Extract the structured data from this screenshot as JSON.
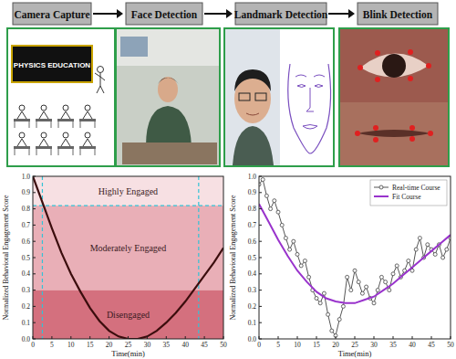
{
  "pipeline": {
    "steps": [
      "Camera Capture",
      "Face Detection",
      "Landmark Detection",
      "Blink Detection"
    ],
    "board_text": "PHYSICS EDUCATION"
  },
  "chart_data": [
    {
      "type": "line",
      "x_label": "Time(min)",
      "y_label": "Normalized Behavioral Engagement Score",
      "x": [
        0,
        2.5,
        5,
        7.5,
        10,
        12.5,
        15,
        17.5,
        20,
        22.5,
        25,
        27.5,
        30,
        32.5,
        35,
        37.5,
        40,
        42.5,
        45,
        47.5,
        50
      ],
      "values": [
        1.0,
        0.84,
        0.68,
        0.53,
        0.4,
        0.29,
        0.19,
        0.11,
        0.05,
        0.015,
        0.0,
        0.0,
        0.015,
        0.05,
        0.1,
        0.16,
        0.23,
        0.31,
        0.39,
        0.47,
        0.56
      ],
      "color": "#3b0d0d",
      "xlim": [
        0,
        50
      ],
      "ylim": [
        0,
        1
      ],
      "xticks": [
        0,
        5,
        10,
        15,
        20,
        25,
        30,
        35,
        40,
        45,
        50
      ],
      "yticks": [
        {
          "value": 0,
          "label": "0.0"
        },
        {
          "value": 0.1,
          "label": "0.1"
        },
        {
          "value": 0.2,
          "label": "0.2"
        },
        {
          "value": 0.3,
          "label": "0.3"
        },
        {
          "value": 0.4,
          "label": "0.4"
        },
        {
          "value": 0.5,
          "label": "0.5"
        },
        {
          "value": 0.6,
          "label": "0.6"
        },
        {
          "value": 0.7,
          "label": "0.7"
        },
        {
          "value": 0.8,
          "label": "0.8"
        },
        {
          "value": 0.9,
          "label": "0.9"
        },
        {
          "value": 1,
          "label": "1.0"
        }
      ],
      "grid": false,
      "bands": [
        {
          "label": "Highly Engaged",
          "from": 0.82,
          "to": 1.0,
          "color": "#f7e0e3"
        },
        {
          "label": "Moderately Engaged",
          "from": 0.3,
          "to": 0.82,
          "color": "#e9afb7"
        },
        {
          "label": "Disengaged",
          "from": 0.0,
          "to": 0.3,
          "color": "#d4707e"
        }
      ],
      "reference_lines": {
        "x": [
          2.5,
          43.5
        ],
        "y": [
          0.82
        ],
        "color": "#33c3d6",
        "line_style": "dashed"
      }
    },
    {
      "type": "line",
      "x_label": "Time(min)",
      "y_label": "Normalized Behavioral Engagement Score",
      "xlim": [
        0,
        50
      ],
      "ylim": [
        0,
        1
      ],
      "xticks": [
        0,
        5,
        10,
        15,
        20,
        25,
        30,
        35,
        40,
        45,
        50
      ],
      "yticks": [
        {
          "value": 0,
          "label": "0.0"
        },
        {
          "value": 0.1,
          "label": "0.1"
        },
        {
          "value": 0.2,
          "label": "0.2"
        },
        {
          "value": 0.3,
          "label": "0.3"
        },
        {
          "value": 0.4,
          "label": "0.4"
        },
        {
          "value": 0.5,
          "label": "0.5"
        },
        {
          "value": 0.6,
          "label": "0.6"
        },
        {
          "value": 0.7,
          "label": "0.7"
        },
        {
          "value": 0.8,
          "label": "0.8"
        },
        {
          "value": 0.9,
          "label": "0.9"
        },
        {
          "value": 1,
          "label": "1.0"
        }
      ],
      "grid": false,
      "legend": "upper right",
      "series": [
        {
          "name": "Real-time Course",
          "color": "#555555",
          "marker": "circle",
          "x": [
            0,
            1,
            2,
            3,
            4,
            5,
            6,
            7,
            8,
            9,
            10,
            11,
            12,
            13,
            14,
            15,
            16,
            17,
            18,
            19,
            20,
            21,
            22,
            23,
            24,
            25,
            26,
            27,
            28,
            29,
            30,
            31,
            32,
            33,
            34,
            35,
            36,
            37,
            38,
            39,
            40,
            41,
            42,
            43,
            44,
            45,
            46,
            47,
            48,
            49,
            50
          ],
          "values": [
            0.95,
            0.98,
            0.88,
            0.8,
            0.85,
            0.78,
            0.7,
            0.62,
            0.55,
            0.6,
            0.52,
            0.45,
            0.48,
            0.38,
            0.3,
            0.25,
            0.22,
            0.28,
            0.15,
            0.05,
            0.02,
            0.12,
            0.2,
            0.38,
            0.3,
            0.42,
            0.35,
            0.28,
            0.32,
            0.25,
            0.22,
            0.3,
            0.38,
            0.35,
            0.3,
            0.4,
            0.45,
            0.38,
            0.42,
            0.48,
            0.42,
            0.55,
            0.62,
            0.5,
            0.58,
            0.55,
            0.52,
            0.58,
            0.5,
            0.55,
            0.62
          ]
        },
        {
          "name": "Fit Course",
          "color": "#9933cc",
          "x": [
            0,
            2.5,
            5,
            7.5,
            10,
            12.5,
            15,
            17.5,
            20,
            22.5,
            25,
            27.5,
            30,
            32.5,
            35,
            37.5,
            40,
            42.5,
            45,
            47.5,
            50
          ],
          "values": [
            0.83,
            0.72,
            0.61,
            0.51,
            0.42,
            0.35,
            0.29,
            0.25,
            0.23,
            0.22,
            0.22,
            0.24,
            0.26,
            0.3,
            0.34,
            0.39,
            0.44,
            0.49,
            0.54,
            0.59,
            0.64
          ]
        }
      ]
    }
  ]
}
